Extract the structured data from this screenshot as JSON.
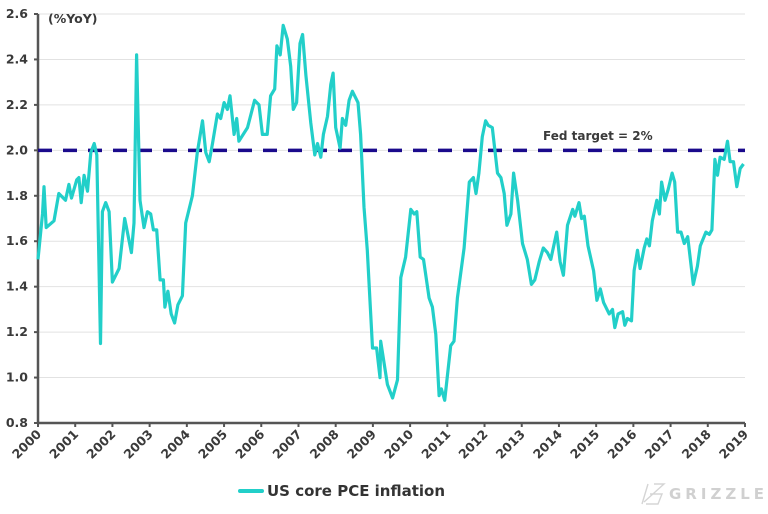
{
  "chart_data": {
    "type": "line",
    "title": "",
    "ylabel": "(%YoY)",
    "xlabel": "",
    "ylim": [
      0.8,
      2.6
    ],
    "xlim": [
      2000,
      2019
    ],
    "yticks": [
      "0.8",
      "1.0",
      "1.2",
      "1.4",
      "1.6",
      "1.8",
      "2.0",
      "2.2",
      "2.4",
      "2.6"
    ],
    "xticks": [
      "2000",
      "2001",
      "2002",
      "2003",
      "2004",
      "2005",
      "2006",
      "2007",
      "2008",
      "2009",
      "2010",
      "2011",
      "2012",
      "2013",
      "2014",
      "2015",
      "2016",
      "2017",
      "2018",
      "2019"
    ],
    "grid": true,
    "legend_position": "bottom-left",
    "reference_line": {
      "value": 2.0,
      "label": "Fed target = 2%",
      "color": "#1a0a8c",
      "style": "dashed"
    },
    "series": [
      {
        "name": "US core PCE inflation",
        "color": "#22cfc9",
        "x": [
          0.0,
          0.12,
          0.16,
          0.22,
          0.43,
          0.56,
          0.74,
          0.83,
          0.9,
          1.04,
          1.1,
          1.16,
          1.24,
          1.33,
          1.42,
          1.51,
          1.58,
          1.68,
          1.73,
          1.82,
          1.91,
          2.0,
          2.18,
          2.33,
          2.51,
          2.58,
          2.65,
          2.74,
          2.85,
          2.94,
          3.03,
          3.1,
          3.19,
          3.28,
          3.37,
          3.41,
          3.49,
          3.58,
          3.67,
          3.76,
          3.88,
          3.97,
          4.15,
          4.28,
          4.42,
          4.51,
          4.6,
          4.69,
          4.82,
          4.91,
          5.0,
          5.09,
          5.16,
          5.27,
          5.34,
          5.4,
          5.63,
          5.82,
          5.94,
          6.03,
          6.16,
          6.25,
          6.36,
          6.42,
          6.51,
          6.59,
          6.7,
          6.79,
          6.86,
          6.95,
          7.04,
          7.11,
          7.2,
          7.33,
          7.44,
          7.51,
          7.6,
          7.67,
          7.78,
          7.87,
          7.93,
          8.0,
          8.12,
          8.18,
          8.27,
          8.36,
          8.45,
          8.6,
          8.67,
          8.76,
          8.85,
          8.99,
          9.1,
          9.19,
          9.21,
          9.39,
          9.53,
          9.66,
          9.75,
          9.88,
          10.02,
          10.11,
          10.18,
          10.27,
          10.36,
          10.51,
          10.6,
          10.69,
          10.78,
          10.84,
          10.93,
          11.09,
          11.18,
          11.27,
          11.45,
          11.59,
          11.7,
          11.77,
          11.85,
          11.94,
          12.03,
          12.1,
          12.21,
          12.35,
          12.44,
          12.53,
          12.6,
          12.71,
          12.78,
          12.89,
          13.02,
          13.15,
          13.26,
          13.35,
          13.47,
          13.58,
          13.69,
          13.78,
          13.94,
          14.03,
          14.12,
          14.23,
          14.37,
          14.43,
          14.54,
          14.61,
          14.68,
          14.78,
          14.93,
          15.02,
          15.11,
          15.2,
          15.35,
          15.44,
          15.5,
          15.59,
          15.71,
          15.77,
          15.84,
          15.95,
          16.02,
          16.11,
          16.18,
          16.29,
          16.36,
          16.43,
          16.51,
          16.63,
          16.7,
          16.76,
          16.85,
          16.94,
          17.04,
          17.11,
          17.19,
          17.28,
          17.37,
          17.46,
          17.61,
          17.72,
          17.8,
          17.95,
          18.04,
          18.11,
          18.19,
          18.26,
          18.33,
          18.44,
          18.53,
          18.6,
          18.69,
          18.78,
          18.87,
          18.96
        ],
        "values": [
          1.52,
          1.72,
          1.84,
          1.66,
          1.69,
          1.81,
          1.78,
          1.85,
          1.79,
          1.87,
          1.88,
          1.77,
          1.89,
          1.82,
          1.99,
          2.03,
          1.98,
          1.15,
          1.73,
          1.77,
          1.73,
          1.42,
          1.48,
          1.7,
          1.55,
          1.68,
          2.42,
          1.78,
          1.66,
          1.73,
          1.72,
          1.65,
          1.65,
          1.43,
          1.43,
          1.31,
          1.38,
          1.28,
          1.24,
          1.32,
          1.36,
          1.68,
          1.8,
          1.99,
          2.13,
          1.99,
          1.95,
          2.03,
          2.16,
          2.14,
          2.21,
          2.18,
          2.24,
          2.07,
          2.14,
          2.04,
          2.1,
          2.22,
          2.2,
          2.07,
          2.07,
          2.24,
          2.27,
          2.46,
          2.42,
          2.55,
          2.49,
          2.37,
          2.18,
          2.21,
          2.47,
          2.51,
          2.33,
          2.12,
          1.98,
          2.03,
          1.97,
          2.07,
          2.15,
          2.29,
          2.34,
          2.1,
          2.01,
          2.14,
          2.11,
          2.22,
          2.26,
          2.21,
          2.07,
          1.75,
          1.56,
          1.13,
          1.13,
          1.0,
          1.16,
          0.97,
          0.91,
          0.99,
          1.44,
          1.53,
          1.74,
          1.72,
          1.73,
          1.53,
          1.52,
          1.35,
          1.31,
          1.19,
          0.92,
          0.95,
          0.9,
          1.14,
          1.16,
          1.35,
          1.57,
          1.86,
          1.88,
          1.81,
          1.9,
          2.06,
          2.13,
          2.11,
          2.1,
          1.9,
          1.88,
          1.81,
          1.67,
          1.72,
          1.9,
          1.78,
          1.59,
          1.52,
          1.41,
          1.43,
          1.51,
          1.57,
          1.55,
          1.52,
          1.64,
          1.51,
          1.45,
          1.67,
          1.74,
          1.71,
          1.77,
          1.7,
          1.71,
          1.58,
          1.47,
          1.34,
          1.39,
          1.33,
          1.28,
          1.3,
          1.22,
          1.28,
          1.29,
          1.23,
          1.26,
          1.25,
          1.47,
          1.56,
          1.48,
          1.57,
          1.61,
          1.58,
          1.69,
          1.78,
          1.72,
          1.86,
          1.78,
          1.83,
          1.9,
          1.86,
          1.64,
          1.64,
          1.59,
          1.62,
          1.41,
          1.49,
          1.58,
          1.64,
          1.63,
          1.65,
          1.96,
          1.89,
          1.97,
          1.96,
          2.04,
          1.95,
          1.95,
          1.84,
          1.92,
          1.94
        ]
      }
    ]
  },
  "logo": {
    "text": "GRIZZLE"
  }
}
